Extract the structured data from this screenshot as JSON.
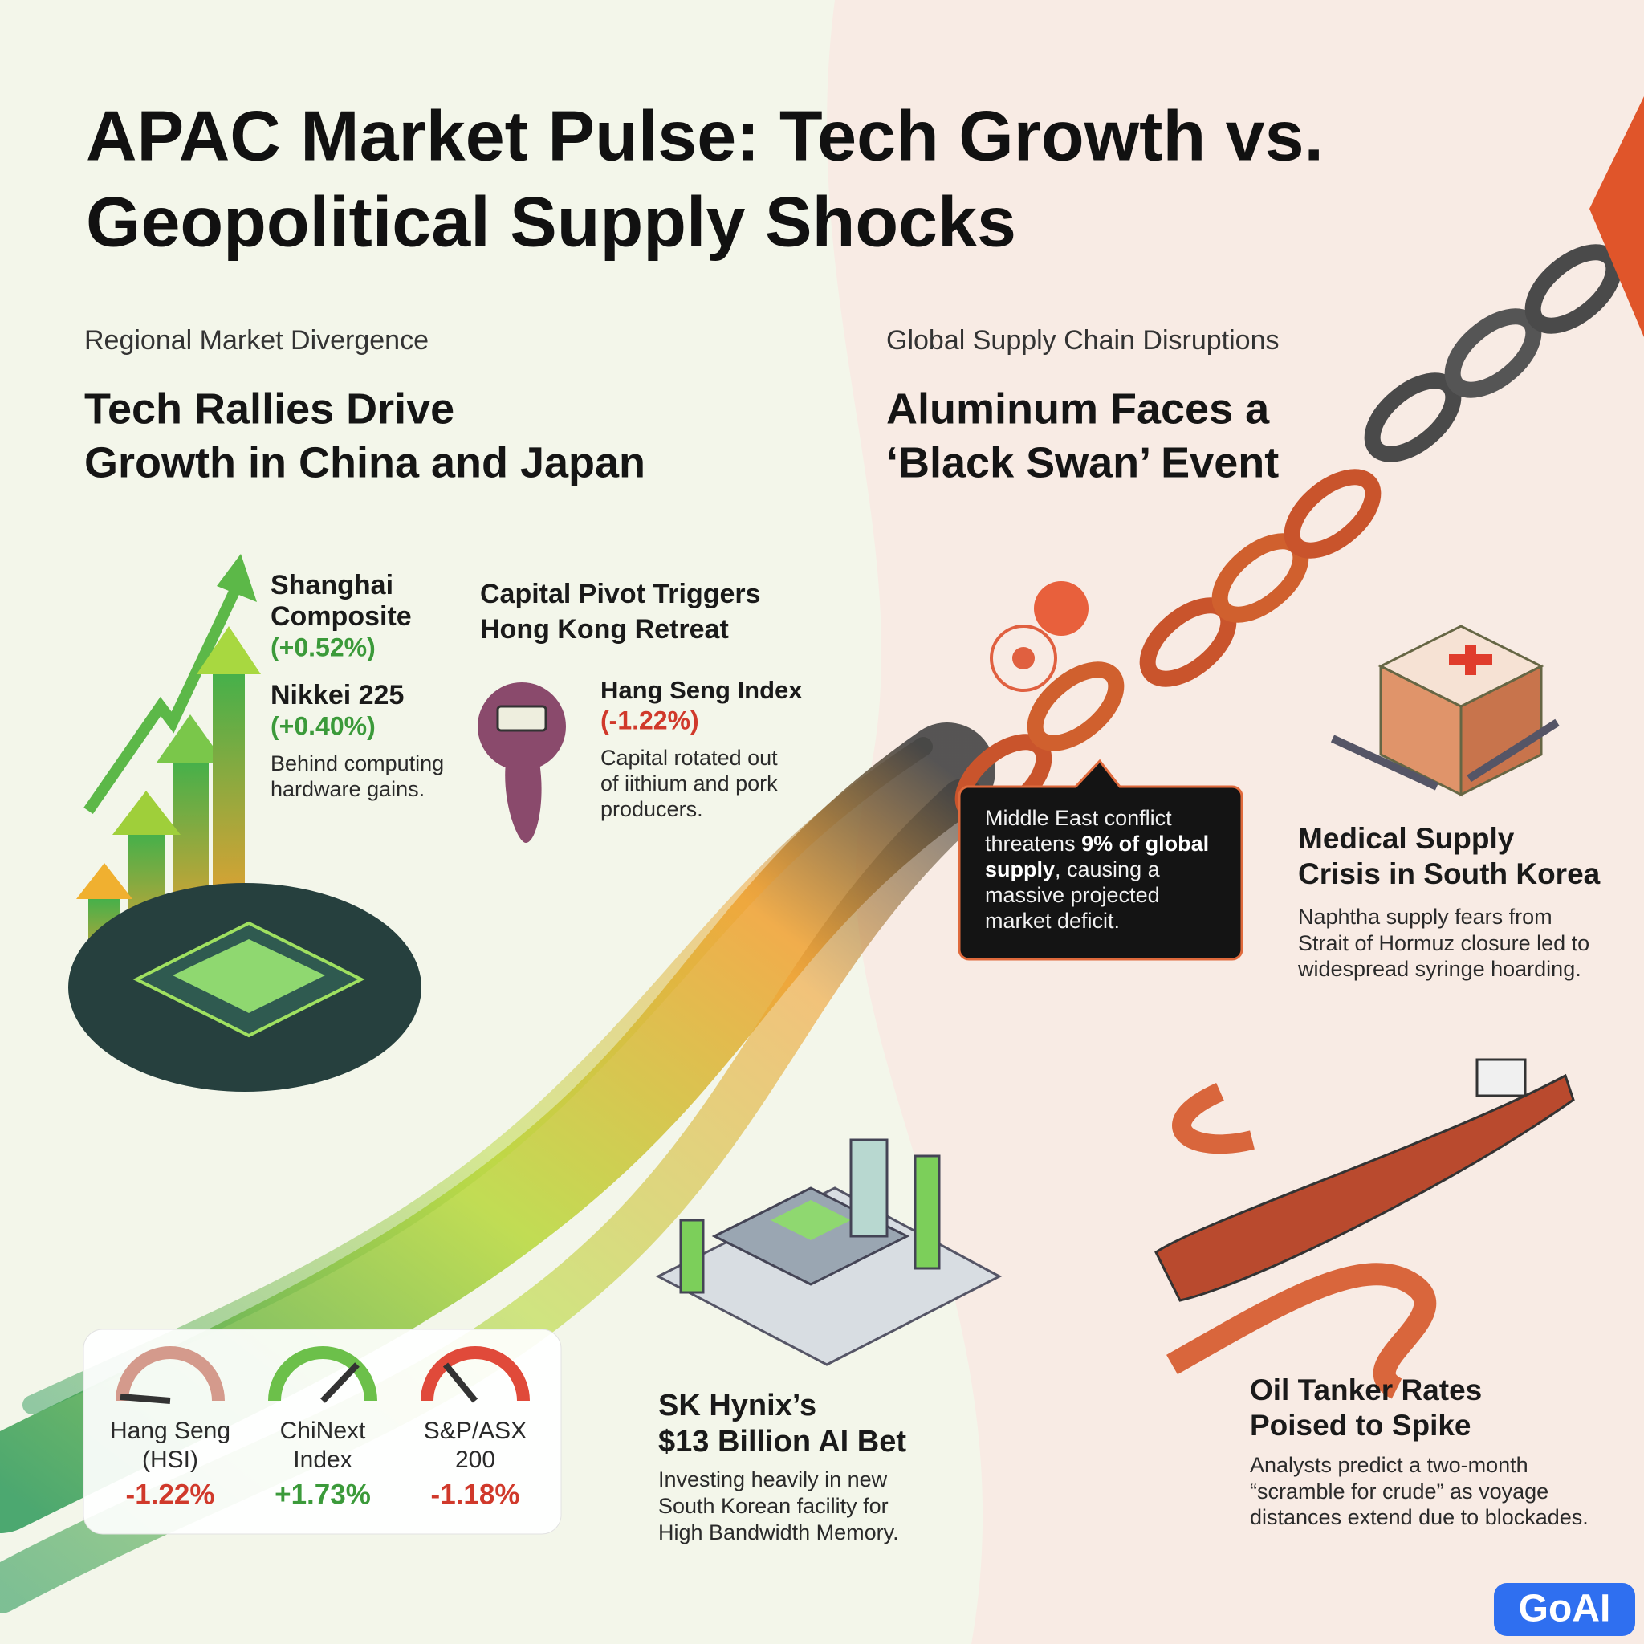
{
  "title": {
    "lines": [
      "APAC Market Pulse: Tech Growth vs.",
      "Geopolitical Supply Shocks"
    ]
  },
  "left": {
    "section_label": "Regional Market Divergence",
    "headline": [
      "Tech Rallies Drive",
      "Growth in China and Japan"
    ],
    "shanghai": {
      "name": [
        "Shanghai",
        "Composite"
      ],
      "change": "(+0.52%)"
    },
    "nikkei": {
      "name": "Nikkei 225",
      "change": "(+0.40%)",
      "note": [
        "Behind computing",
        "hardware gains."
      ]
    },
    "hong_kong": {
      "headline": [
        "Capital Pivot Triggers",
        "Hong Kong Retreat"
      ],
      "index": "Hang Seng Index",
      "change": "(-1.22%)",
      "note": [
        "Capital rotated out",
        "of iithium and pork",
        "producers."
      ]
    },
    "gauges": [
      {
        "label": [
          "Hang Seng",
          "(HSI)"
        ],
        "value": "-1.22%"
      },
      {
        "label": [
          "ChiNext",
          "Index"
        ],
        "value": "+1.73%"
      },
      {
        "label": [
          "S&P/ASX",
          "200"
        ],
        "value": "-1.18%"
      }
    ],
    "sk_hynix": {
      "title": [
        "SK Hynix’s",
        "$13 Billion AI Bet"
      ],
      "text": [
        "Investing heavily in new",
        "South Korean facility for",
        "High Bandwidth Memory."
      ]
    }
  },
  "right": {
    "section_label": "Global Supply Chain Disruptions",
    "headline": [
      "Aluminum Faces a",
      "‘Black Swan’ Event"
    ],
    "callout": [
      [
        {
          "text": "Middle East conflict"
        }
      ],
      [
        {
          "text": "threatens "
        },
        {
          "text": "9% of global",
          "bold": true
        }
      ],
      [
        {
          "text": "supply",
          "bold": true
        },
        {
          "text": ", causing a"
        }
      ],
      [
        {
          "text": "massive projected"
        }
      ],
      [
        {
          "text": "market deficit."
        }
      ]
    ],
    "medical": {
      "title": [
        "Medical Supply",
        "Crisis in South Korea"
      ],
      "text": [
        "Naphtha supply fears from",
        "Strait of Hormuz closure led to",
        "widespread syringe hoarding."
      ]
    },
    "oil": {
      "title": [
        "Oil Tanker Rates",
        "Poised to Spike"
      ],
      "text": [
        "Analysts predict a two-month",
        "“scramble for crude” as voyage",
        "distances extend due to blockades."
      ]
    }
  },
  "logo": "GoAI"
}
